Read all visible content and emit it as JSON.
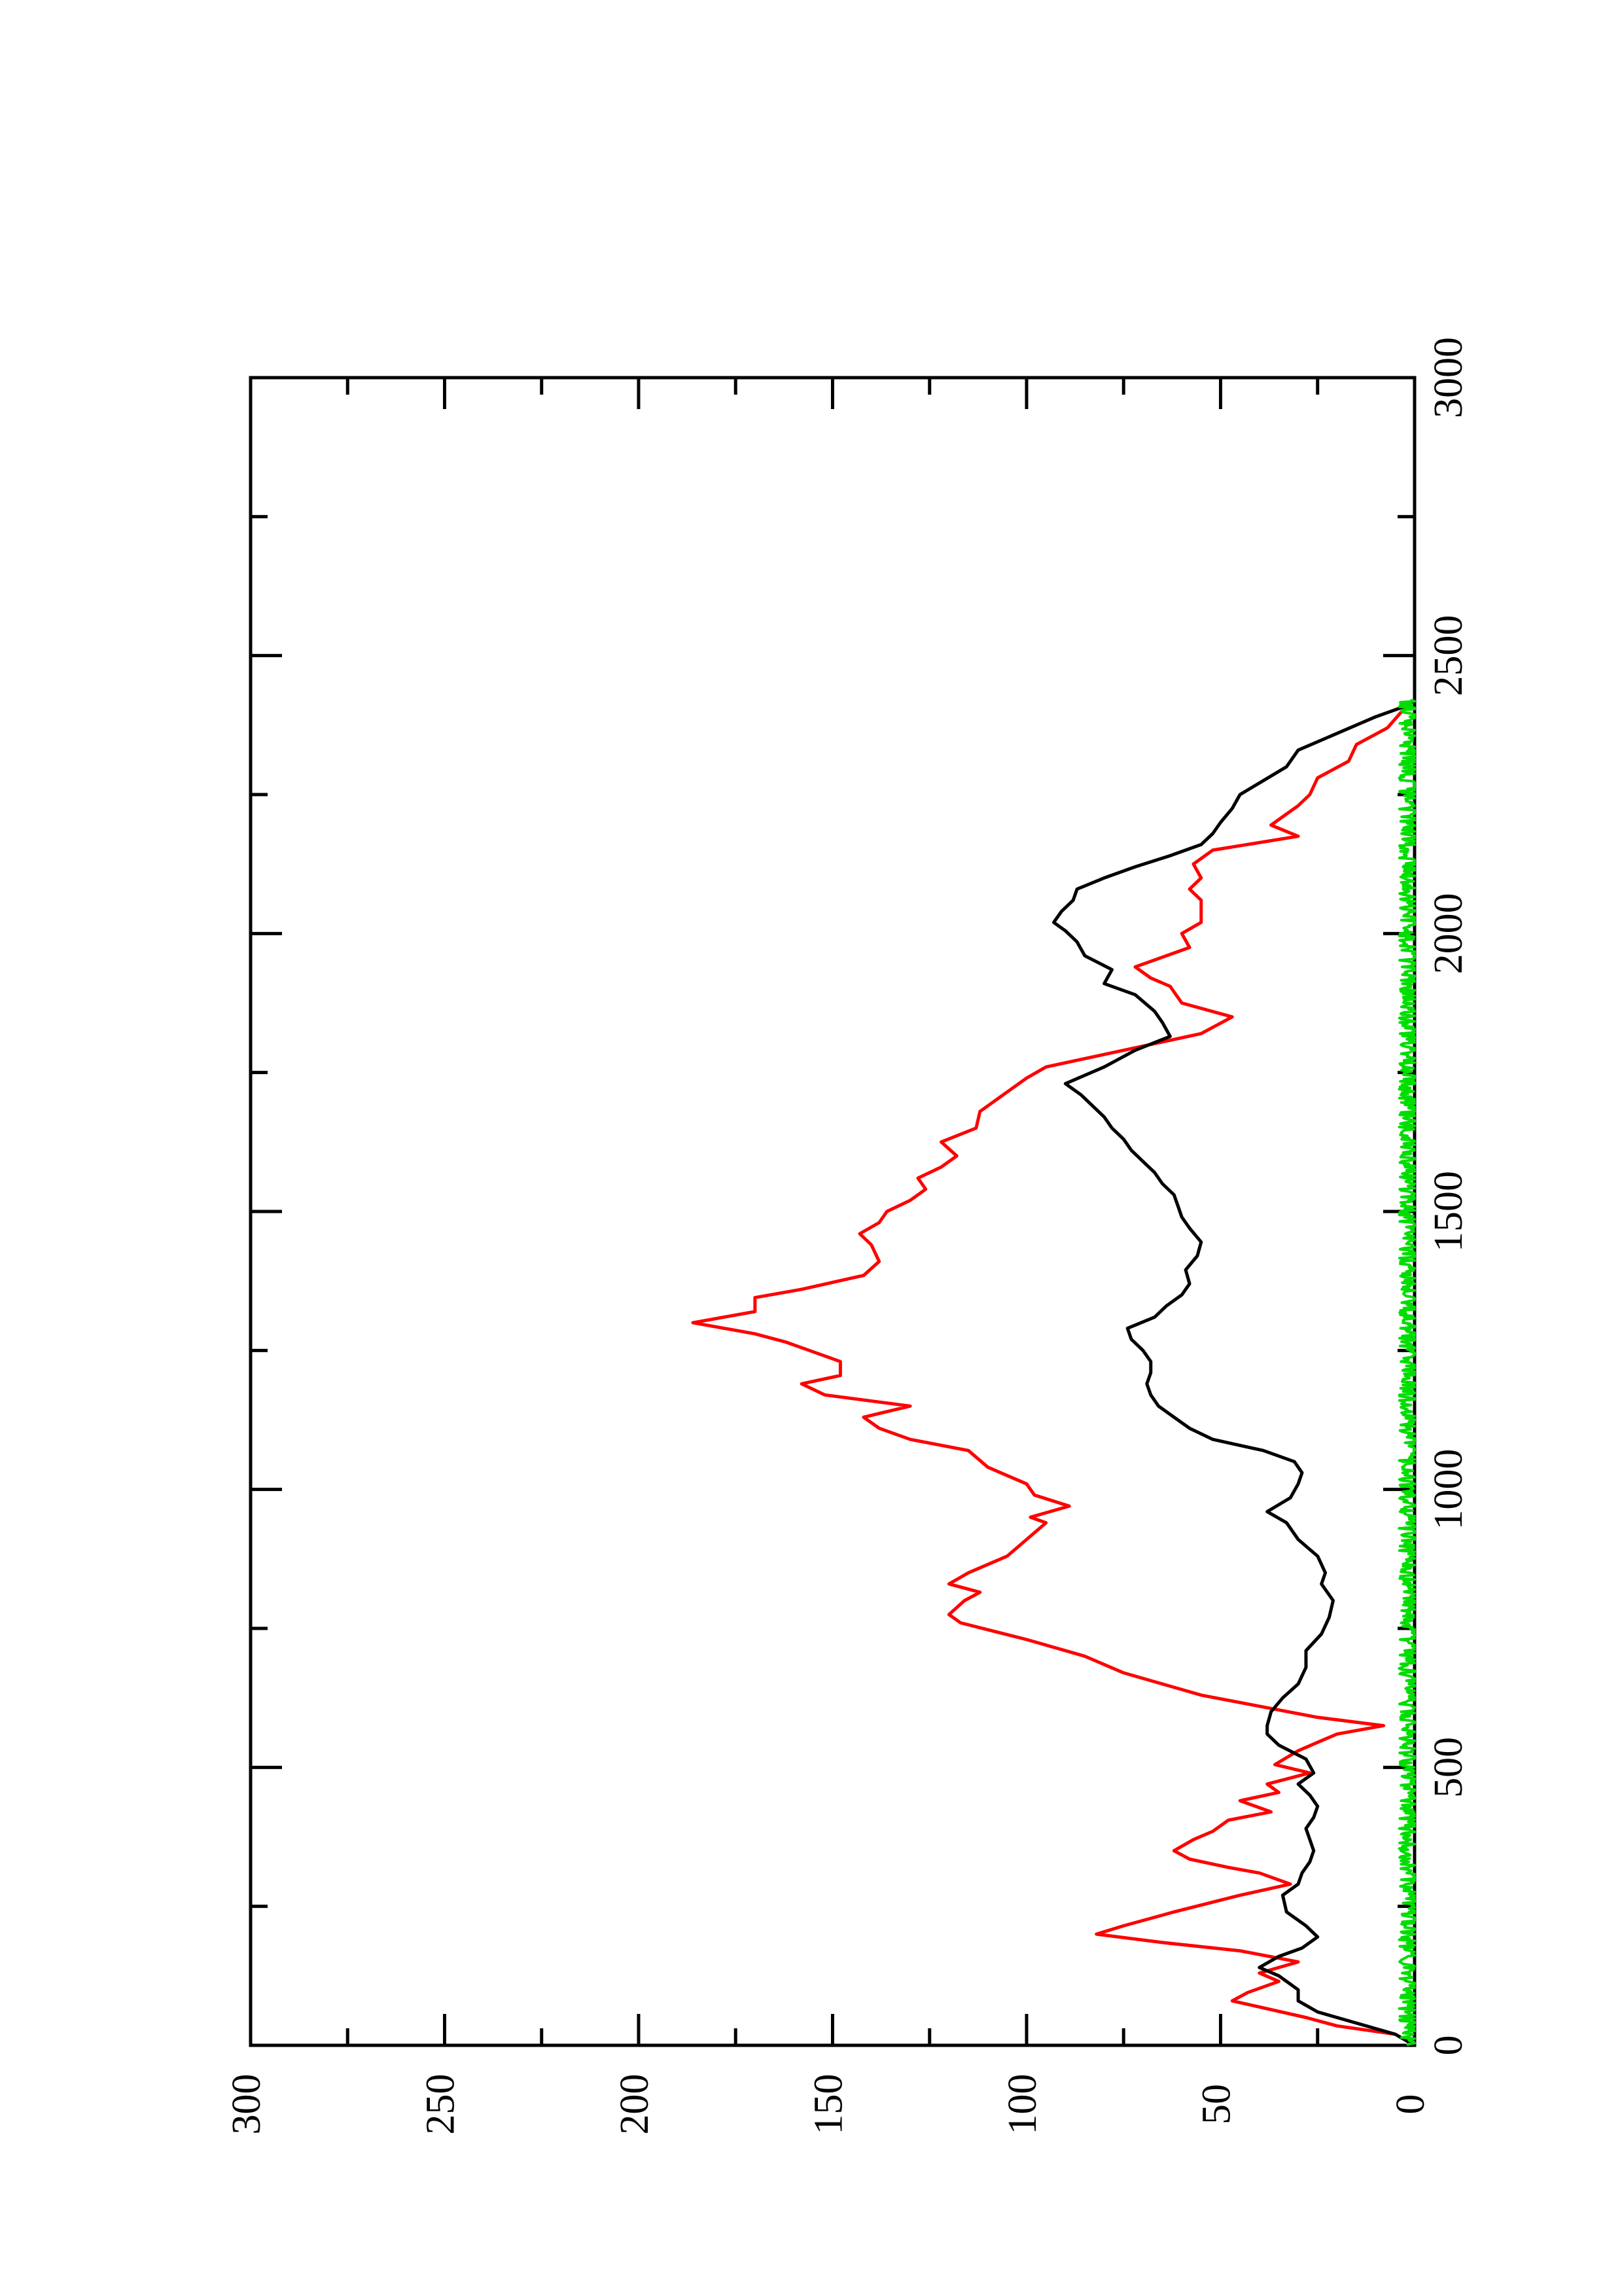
{
  "chart_data": {
    "type": "line",
    "orientation": "rotated-90-ccw",
    "title": "",
    "xlabel": "",
    "ylabel": "",
    "xlim": [
      0,
      3000
    ],
    "ylim": [
      0,
      300
    ],
    "x_ticks": [
      "0",
      "500",
      "1000",
      "1500",
      "2000",
      "2500",
      "3000"
    ],
    "y_ticks": [
      "0",
      "50",
      "100",
      "150",
      "200",
      "250",
      "300"
    ],
    "x_tick_values": [
      0,
      500,
      1000,
      1500,
      2000,
      2500,
      3000
    ],
    "y_tick_values": [
      0,
      50,
      100,
      150,
      200,
      250,
      300
    ],
    "grid": false,
    "legend": "none",
    "series": [
      {
        "color": "#ff0000",
        "points": [
          [
            0,
            0
          ],
          [
            20,
            5
          ],
          [
            35,
            20
          ],
          [
            50,
            28
          ],
          [
            80,
            47
          ],
          [
            95,
            43
          ],
          [
            115,
            35
          ],
          [
            130,
            40
          ],
          [
            150,
            30
          ],
          [
            170,
            45
          ],
          [
            185,
            65
          ],
          [
            200,
            82
          ],
          [
            215,
            75
          ],
          [
            240,
            62
          ],
          [
            270,
            45
          ],
          [
            290,
            32
          ],
          [
            310,
            40
          ],
          [
            320,
            48
          ],
          [
            335,
            58
          ],
          [
            350,
            62
          ],
          [
            370,
            57
          ],
          [
            385,
            52
          ],
          [
            405,
            48
          ],
          [
            420,
            37
          ],
          [
            440,
            45
          ],
          [
            455,
            35
          ],
          [
            470,
            38
          ],
          [
            490,
            27
          ],
          [
            505,
            36
          ],
          [
            530,
            30
          ],
          [
            545,
            25
          ],
          [
            560,
            20
          ],
          [
            575,
            8
          ],
          [
            590,
            25
          ],
          [
            610,
            40
          ],
          [
            630,
            55
          ],
          [
            650,
            65
          ],
          [
            670,
            75
          ],
          [
            700,
            85
          ],
          [
            730,
            100
          ],
          [
            760,
            117
          ],
          [
            775,
            120
          ],
          [
            800,
            116
          ],
          [
            815,
            112
          ],
          [
            830,
            120
          ],
          [
            850,
            115
          ],
          [
            880,
            105
          ],
          [
            910,
            100
          ],
          [
            940,
            95
          ],
          [
            950,
            99
          ],
          [
            970,
            89
          ],
          [
            990,
            98
          ],
          [
            1010,
            100
          ],
          [
            1040,
            110
          ],
          [
            1070,
            115
          ],
          [
            1090,
            130
          ],
          [
            1110,
            138
          ],
          [
            1130,
            142
          ],
          [
            1150,
            130
          ],
          [
            1170,
            152
          ],
          [
            1190,
            158
          ],
          [
            1205,
            148
          ],
          [
            1230,
            148
          ],
          [
            1250,
            156
          ],
          [
            1265,
            162
          ],
          [
            1280,
            170
          ],
          [
            1300,
            186
          ],
          [
            1320,
            170
          ],
          [
            1345,
            170
          ],
          [
            1360,
            158
          ],
          [
            1385,
            142
          ],
          [
            1410,
            138
          ],
          [
            1440,
            140
          ],
          [
            1460,
            143
          ],
          [
            1480,
            138
          ],
          [
            1500,
            136
          ],
          [
            1520,
            130
          ],
          [
            1540,
            126
          ],
          [
            1560,
            128
          ],
          [
            1580,
            122
          ],
          [
            1600,
            118
          ],
          [
            1625,
            122
          ],
          [
            1650,
            113
          ],
          [
            1680,
            112
          ],
          [
            1700,
            108
          ],
          [
            1720,
            104
          ],
          [
            1740,
            100
          ],
          [
            1760,
            95
          ],
          [
            1790,
            75
          ],
          [
            1820,
            55
          ],
          [
            1850,
            47
          ],
          [
            1875,
            60
          ],
          [
            1905,
            63
          ],
          [
            1920,
            68
          ],
          [
            1940,
            72
          ],
          [
            1955,
            66
          ],
          [
            1975,
            58
          ],
          [
            2000,
            60
          ],
          [
            2020,
            55
          ],
          [
            2040,
            55
          ],
          [
            2060,
            55
          ],
          [
            2080,
            58
          ],
          [
            2100,
            55
          ],
          [
            2125,
            57
          ],
          [
            2150,
            52
          ],
          [
            2175,
            30
          ],
          [
            2195,
            37
          ],
          [
            2215,
            33
          ],
          [
            2230,
            30
          ],
          [
            2250,
            27
          ],
          [
            2280,
            25
          ],
          [
            2310,
            17
          ],
          [
            2340,
            15
          ],
          [
            2370,
            7
          ],
          [
            2410,
            2
          ],
          [
            2420,
            0
          ]
        ]
      },
      {
        "color": "#000000",
        "points": [
          [
            0,
            0
          ],
          [
            20,
            5
          ],
          [
            40,
            15
          ],
          [
            60,
            25
          ],
          [
            80,
            30
          ],
          [
            100,
            30
          ],
          [
            125,
            35
          ],
          [
            140,
            40
          ],
          [
            160,
            35
          ],
          [
            175,
            29
          ],
          [
            195,
            25
          ],
          [
            215,
            28
          ],
          [
            240,
            33
          ],
          [
            270,
            34
          ],
          [
            290,
            30
          ],
          [
            310,
            29
          ],
          [
            330,
            27
          ],
          [
            350,
            26
          ],
          [
            370,
            27
          ],
          [
            390,
            28
          ],
          [
            410,
            26
          ],
          [
            430,
            25
          ],
          [
            450,
            27
          ],
          [
            470,
            30
          ],
          [
            490,
            26
          ],
          [
            515,
            28
          ],
          [
            540,
            35
          ],
          [
            560,
            38
          ],
          [
            575,
            38
          ],
          [
            600,
            37
          ],
          [
            625,
            34
          ],
          [
            650,
            30
          ],
          [
            680,
            28
          ],
          [
            710,
            28
          ],
          [
            740,
            24
          ],
          [
            770,
            22
          ],
          [
            800,
            21
          ],
          [
            830,
            24
          ],
          [
            850,
            23
          ],
          [
            880,
            25
          ],
          [
            910,
            30
          ],
          [
            940,
            33
          ],
          [
            960,
            38
          ],
          [
            985,
            32
          ],
          [
            1010,
            30
          ],
          [
            1030,
            29
          ],
          [
            1050,
            31
          ],
          [
            1070,
            39
          ],
          [
            1090,
            52
          ],
          [
            1110,
            58
          ],
          [
            1130,
            62
          ],
          [
            1150,
            66
          ],
          [
            1170,
            68
          ],
          [
            1190,
            69
          ],
          [
            1210,
            68
          ],
          [
            1230,
            68
          ],
          [
            1250,
            70
          ],
          [
            1270,
            73
          ],
          [
            1290,
            74
          ],
          [
            1310,
            67
          ],
          [
            1330,
            64
          ],
          [
            1350,
            60
          ],
          [
            1370,
            58
          ],
          [
            1395,
            59
          ],
          [
            1420,
            56
          ],
          [
            1445,
            55
          ],
          [
            1470,
            58
          ],
          [
            1490,
            60
          ],
          [
            1510,
            61
          ],
          [
            1530,
            62
          ],
          [
            1550,
            65
          ],
          [
            1570,
            67
          ],
          [
            1590,
            70
          ],
          [
            1610,
            73
          ],
          [
            1630,
            75
          ],
          [
            1650,
            78
          ],
          [
            1670,
            80
          ],
          [
            1690,
            83
          ],
          [
            1710,
            86
          ],
          [
            1730,
            90
          ],
          [
            1760,
            80
          ],
          [
            1790,
            72
          ],
          [
            1815,
            63
          ],
          [
            1840,
            65
          ],
          [
            1860,
            67
          ],
          [
            1890,
            72
          ],
          [
            1910,
            80
          ],
          [
            1935,
            78
          ],
          [
            1960,
            85
          ],
          [
            1985,
            87
          ],
          [
            2005,
            90
          ],
          [
            2020,
            93
          ],
          [
            2040,
            91
          ],
          [
            2060,
            88
          ],
          [
            2080,
            87
          ],
          [
            2100,
            80
          ],
          [
            2120,
            72
          ],
          [
            2140,
            63
          ],
          [
            2160,
            55
          ],
          [
            2180,
            52
          ],
          [
            2200,
            50
          ],
          [
            2225,
            47
          ],
          [
            2250,
            45
          ],
          [
            2275,
            39
          ],
          [
            2300,
            33
          ],
          [
            2330,
            30
          ],
          [
            2360,
            20
          ],
          [
            2390,
            10
          ],
          [
            2410,
            2
          ],
          [
            2420,
            0
          ]
        ]
      },
      {
        "color": "#00dd00",
        "baseline": 1.5,
        "noise": 2.5,
        "x_range": [
          0,
          2420
        ]
      }
    ]
  }
}
